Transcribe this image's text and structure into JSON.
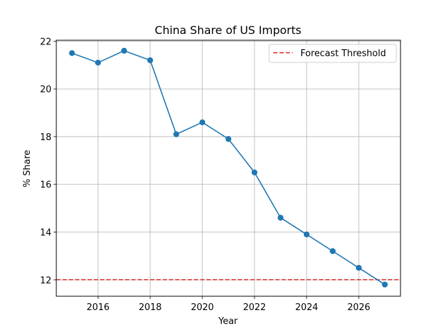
{
  "chart_data": {
    "type": "line",
    "title": "China Share of US Imports",
    "xlabel": "Year",
    "ylabel": "% Share",
    "xlim": [
      2014.4,
      2027.6
    ],
    "ylim": [
      11.31,
      22.04
    ],
    "xticks": [
      2016,
      2018,
      2020,
      2022,
      2024,
      2026
    ],
    "yticks": [
      12,
      14,
      16,
      18,
      20,
      22
    ],
    "grid": true,
    "legend_position": "top-right",
    "series": [
      {
        "x": [
          2015,
          2016,
          2017,
          2018,
          2019,
          2020,
          2021,
          2022,
          2023,
          2024,
          2025,
          2026,
          2027
        ],
        "y": [
          21.5,
          21.1,
          21.6,
          21.2,
          18.1,
          18.6,
          17.9,
          16.5,
          14.6,
          13.9,
          13.2,
          12.5,
          11.8
        ],
        "color": "#1f77b4",
        "marker": "circle"
      }
    ],
    "reference_lines": [
      {
        "name": "Forecast Threshold",
        "y": 12,
        "color": "#d62728",
        "style": "dashed"
      }
    ]
  }
}
